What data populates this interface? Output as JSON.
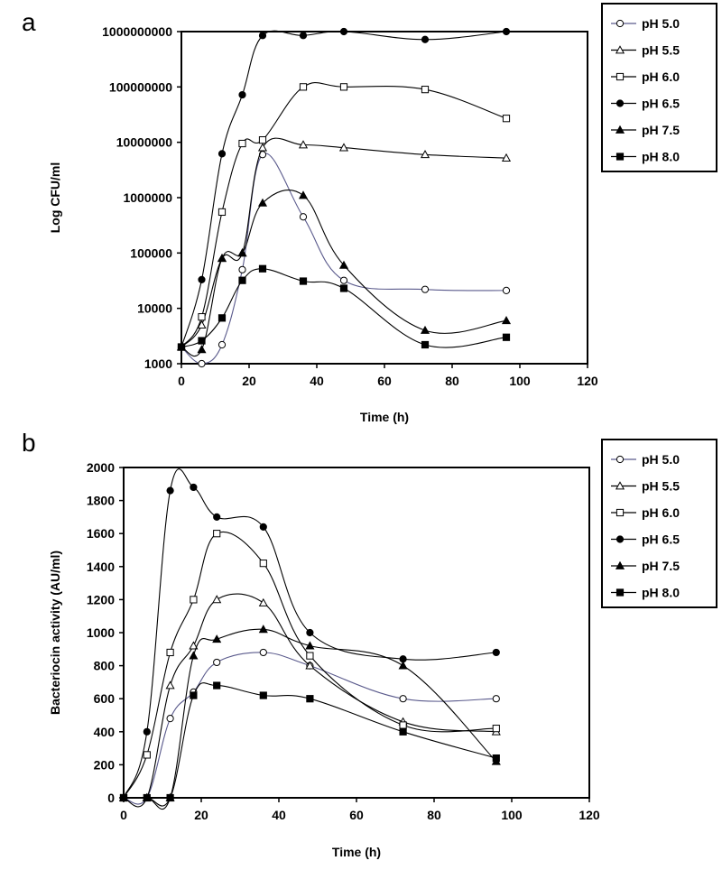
{
  "chart_data": [
    {
      "panel": "a",
      "type": "line",
      "xlabel": "Time (h)",
      "ylabel": "Log CFU/ml",
      "xlim": [
        0,
        120
      ],
      "xticks": [
        "0",
        "20",
        "40",
        "60",
        "80",
        "100",
        "120"
      ],
      "ylim": [
        1000,
        1000000000
      ],
      "yscale": "log",
      "yticks": [
        "1000",
        "10000",
        "100000",
        "1000000",
        "10000000",
        "100000000",
        "1000000000"
      ],
      "legend_position": "right",
      "grid": false,
      "x": [
        0,
        6,
        12,
        18,
        24,
        36,
        48,
        72,
        96
      ],
      "series": [
        {
          "name": "pH 5.0",
          "marker": "circle-open",
          "line_color": "#5a5a8c",
          "values": [
            2000,
            1000,
            2200,
            50000,
            6000000,
            450000,
            32000,
            22000,
            21000
          ]
        },
        {
          "name": "pH 5.5",
          "marker": "triangle-open",
          "line_color": "#000000",
          "values": [
            2000,
            5000,
            80000,
            100000,
            8000000,
            9000000,
            8000000,
            6000000,
            5200000
          ]
        },
        {
          "name": "pH 6.0",
          "marker": "square-open",
          "line_color": "#000000",
          "values": [
            2000,
            7000,
            550000,
            9500000,
            11000000,
            100000000,
            100000000,
            90000000,
            27000000
          ]
        },
        {
          "name": "pH 6.5",
          "marker": "circle-filled",
          "line_color": "#000000",
          "values": [
            2000,
            33000,
            6200000,
            72000000,
            850000000,
            850000000,
            1000000000,
            720000000,
            1000000000
          ]
        },
        {
          "name": "pH 7.5",
          "marker": "triangle-filled",
          "line_color": "#000000",
          "values": [
            2000,
            1800,
            80000,
            100000,
            800000,
            1100000,
            60000,
            4000,
            6000
          ]
        },
        {
          "name": "pH 8.0",
          "marker": "square-filled",
          "line_color": "#000000",
          "values": [
            2000,
            2600,
            6700,
            32000,
            52000,
            31000,
            23000,
            2200,
            3000
          ]
        }
      ]
    },
    {
      "panel": "b",
      "type": "line",
      "xlabel": "Time (h)",
      "ylabel": "Bacteriocin activity (AU/ml)",
      "xlim": [
        0,
        120
      ],
      "xticks": [
        "0",
        "20",
        "40",
        "60",
        "80",
        "100",
        "120"
      ],
      "ylim": [
        0,
        2000
      ],
      "yscale": "linear",
      "yticks": [
        "0",
        "200",
        "400",
        "600",
        "800",
        "1000",
        "1200",
        "1400",
        "1600",
        "1800",
        "2000"
      ],
      "legend_position": "right",
      "grid": false,
      "series": [
        {
          "name": "pH 5.0",
          "marker": "circle-open",
          "line_color": "#5a5a8c",
          "x": [
            0,
            6,
            12,
            18,
            24,
            36,
            48,
            72,
            96
          ],
          "values": [
            0,
            0,
            480,
            640,
            820,
            880,
            800,
            600,
            600
          ]
        },
        {
          "name": "pH 5.5",
          "marker": "triangle-open",
          "line_color": "#000000",
          "x": [
            0,
            6,
            12,
            18,
            24,
            36,
            48,
            72,
            96
          ],
          "values": [
            0,
            0,
            680,
            920,
            1200,
            1180,
            800,
            460,
            400
          ]
        },
        {
          "name": "pH 6.0",
          "marker": "square-open",
          "line_color": "#000000",
          "x": [
            0,
            6,
            12,
            18,
            24,
            36,
            48,
            72,
            96
          ],
          "values": [
            0,
            260,
            880,
            1200,
            1600,
            1420,
            860,
            440,
            420
          ]
        },
        {
          "name": "pH 6.5",
          "marker": "circle-filled",
          "line_color": "#000000",
          "x": [
            0,
            6,
            12,
            18,
            24,
            36,
            48,
            72,
            96
          ],
          "values": [
            0,
            400,
            1860,
            1880,
            1700,
            1640,
            1000,
            840,
            880
          ]
        },
        {
          "name": "pH 7.5",
          "marker": "triangle-filled",
          "line_color": "#000000",
          "x": [
            0,
            6,
            12,
            18,
            24,
            36,
            48,
            72,
            96
          ],
          "values": [
            0,
            0,
            0,
            860,
            960,
            1020,
            920,
            800,
            220
          ]
        },
        {
          "name": "pH 8.0",
          "marker": "square-filled",
          "line_color": "#000000",
          "x": [
            0,
            6,
            12,
            18,
            24,
            36,
            48,
            72,
            96
          ],
          "values": [
            0,
            0,
            0,
            620,
            680,
            620,
            600,
            400,
            240
          ]
        }
      ]
    }
  ]
}
